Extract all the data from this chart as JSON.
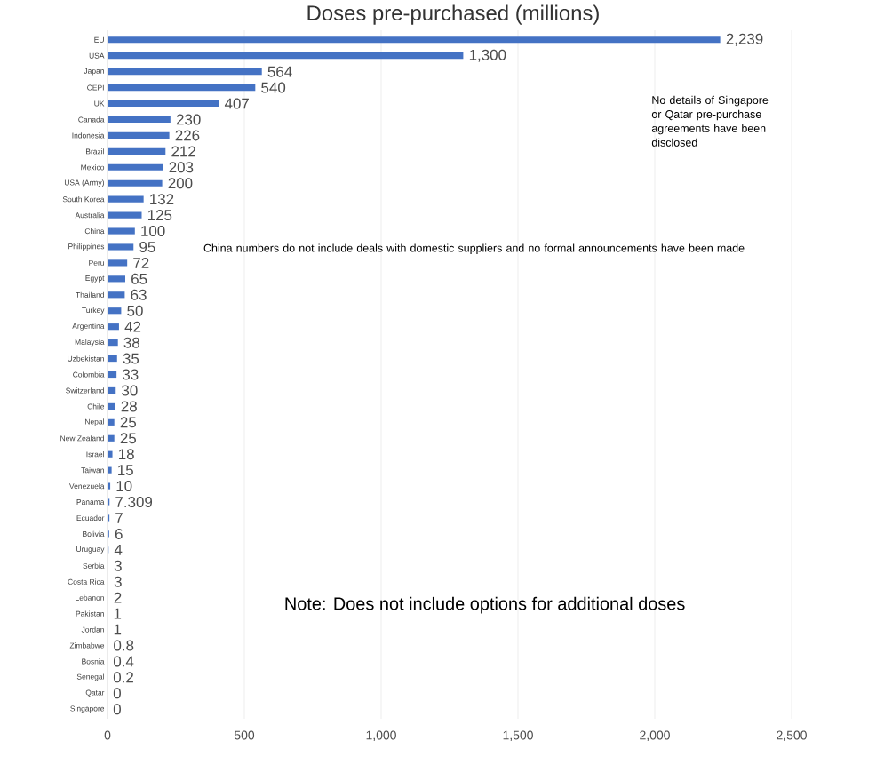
{
  "chart_data": {
    "type": "bar",
    "orientation": "horizontal",
    "title": "Doses pre-purchased (millions)",
    "categories": [
      "EU",
      "USA",
      "Japan",
      "CEPI",
      "UK",
      "Canada",
      "Indonesia",
      "Brazil",
      "Mexico",
      "USA (Army)",
      "South Korea",
      "Australia",
      "China",
      "Philippines",
      "Peru",
      "Egypt",
      "Thailand",
      "Turkey",
      "Argentina",
      "Malaysia",
      "Uzbekistan",
      "Colombia",
      "Switzerland",
      "Chile",
      "Nepal",
      "New Zealand",
      "Israel",
      "Taiwan",
      "Venezuela",
      "Panama",
      "Ecuador",
      "Bolivia",
      "Uruguay",
      "Serbia",
      "Costa Rica",
      "Lebanon",
      "Pakistan",
      "Jordan",
      "Zimbabwe",
      "Bosnia",
      "Senegal",
      "Qatar",
      "Singapore"
    ],
    "values": [
      2239,
      1300,
      564,
      540,
      407,
      230,
      226,
      212,
      203,
      200,
      132,
      125,
      100,
      95,
      72,
      65,
      63,
      50,
      42,
      38,
      35,
      33,
      30,
      28,
      25,
      25,
      18,
      15,
      10,
      7.309,
      7,
      6,
      4,
      3,
      3,
      2,
      1,
      1,
      0.8,
      0.4,
      0.2,
      0,
      0
    ],
    "value_labels": [
      "2,239",
      "1,300",
      "564",
      "540",
      "407",
      "230",
      "226",
      "212",
      "203",
      "200",
      "132",
      "125",
      "100",
      "95",
      "72",
      "65",
      "63",
      "50",
      "42",
      "38",
      "35",
      "33",
      "30",
      "28",
      "25",
      "25",
      "18",
      "15",
      "10",
      "7.309",
      "7",
      "6",
      "4",
      "3",
      "3",
      "2",
      "1",
      "1",
      "0.8",
      "0.4",
      "0.2",
      "0",
      "0"
    ],
    "color": "#4472c4",
    "xlim": [
      0,
      2500
    ],
    "xticks": [
      0,
      500,
      {
        "value": 1000,
        "label": "1,000"
      },
      {
        "value": 1500,
        "label": "1,500"
      },
      {
        "value": 2000,
        "label": "2,000"
      },
      {
        "value": 2500,
        "label": "2,500"
      }
    ],
    "grid": "x",
    "annotations": [
      "No details of Singapore or Qatar pre-purchase agreements have been disclosed",
      "China numbers do not include deals with domestic suppliers and no formal announcements have been made",
      "Note: Does not include options for additional doses"
    ]
  }
}
